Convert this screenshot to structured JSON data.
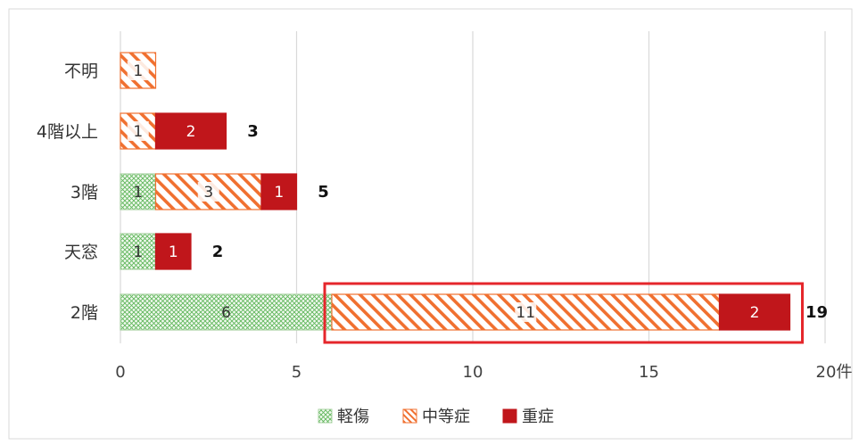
{
  "chart_data": {
    "type": "bar",
    "orientation": "horizontal",
    "stacked": true,
    "categories": [
      "不明",
      "4階以上",
      "3階",
      "天窓",
      "2階"
    ],
    "series": [
      {
        "name": "軽傷",
        "values": [
          0,
          0,
          1,
          1,
          6
        ],
        "color": "#4caf50",
        "pattern": "crosshatch"
      },
      {
        "name": "中等症",
        "values": [
          1,
          1,
          3,
          0,
          11
        ],
        "color": "#f07030",
        "pattern": "diagonal"
      },
      {
        "name": "重症",
        "values": [
          0,
          2,
          1,
          1,
          2
        ],
        "color": "#c0161b",
        "pattern": "solid"
      }
    ],
    "totals": [
      "",
      "3",
      "5",
      "2",
      "19"
    ],
    "xticks": [
      "0",
      "5",
      "10",
      "15",
      "20件"
    ],
    "xlim": [
      0,
      20
    ],
    "grid": true,
    "legend": "bottom-center",
    "highlight": {
      "category": "2階",
      "from": 6,
      "to": 19
    }
  }
}
